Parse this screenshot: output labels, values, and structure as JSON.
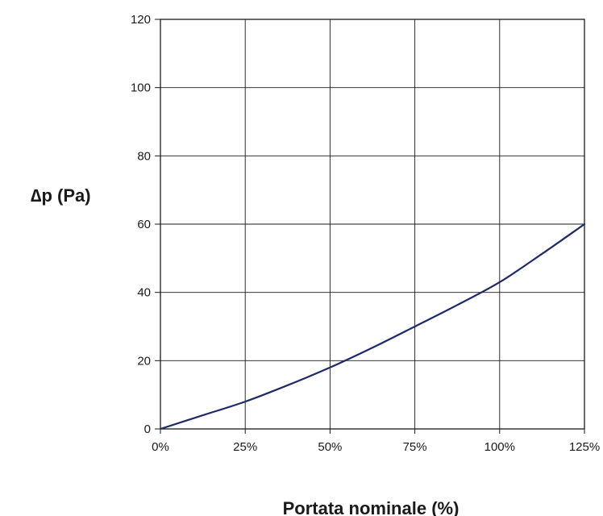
{
  "chart_data": {
    "type": "line",
    "title": "",
    "xlabel": "Portata  nominale (%)",
    "ylabel": "∆p (Pa)",
    "xlim": [
      0,
      125
    ],
    "ylim": [
      0,
      120
    ],
    "x_ticks": [
      0,
      25,
      50,
      75,
      100,
      125
    ],
    "x_tick_labels": [
      "0%",
      "25%",
      "50%",
      "75%",
      "100%",
      "125%"
    ],
    "y_ticks": [
      0,
      20,
      40,
      60,
      80,
      100,
      120
    ],
    "y_tick_labels": [
      "0",
      "20",
      "40",
      "60",
      "80",
      "100",
      "120"
    ],
    "grid": true,
    "legend": "none",
    "series": [
      {
        "color": "#1f2a66",
        "x": [
          0,
          12.5,
          25,
          37.5,
          50,
          62.5,
          75,
          87.5,
          100,
          112.5,
          125
        ],
        "y": [
          0,
          4,
          8,
          12.8,
          18,
          23.8,
          30,
          36.3,
          43,
          51.3,
          60
        ]
      }
    ]
  }
}
